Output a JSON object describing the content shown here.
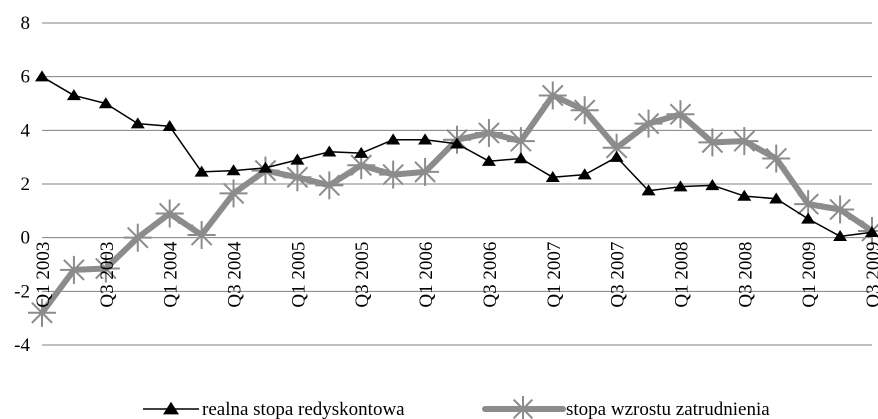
{
  "chart_data": {
    "type": "line",
    "title": "",
    "xlabel": "",
    "ylabel": "",
    "ylim": [
      -4,
      8
    ],
    "yticks": [
      -4,
      -2,
      0,
      2,
      4,
      6,
      8
    ],
    "grid": true,
    "legend_position": "bottom",
    "x": [
      "Q1 2003",
      "Q2 2003",
      "Q3 2003",
      "Q4 2003",
      "Q1 2004",
      "Q2 2004",
      "Q3 2004",
      "Q4 2004",
      "Q1 2005",
      "Q2 2005",
      "Q3 2005",
      "Q4 2005",
      "Q1 2006",
      "Q2 2006",
      "Q3 2006",
      "Q4 2006",
      "Q1 2007",
      "Q2 2007",
      "Q3 2007",
      "Q4 2007",
      "Q1 2008",
      "Q2 2008",
      "Q3 2008",
      "Q4 2008",
      "Q1 2009",
      "Q2 2009",
      "Q3 2009"
    ],
    "x_tick_labels": [
      "Q1 2003",
      "Q3 2003",
      "Q1 2004",
      "Q3 2004",
      "Q1 2005",
      "Q3 2005",
      "Q1 2006",
      "Q3 2006",
      "Q1 2007",
      "Q3 2007",
      "Q1 2008",
      "Q3 2008",
      "Q1 2009",
      "Q3 2009"
    ],
    "series": [
      {
        "name": "realna stopa redyskontowa",
        "color": "#000000",
        "marker": "triangle",
        "values": [
          6.0,
          5.3,
          5.0,
          4.25,
          4.15,
          2.45,
          2.5,
          2.6,
          2.9,
          3.2,
          3.15,
          3.65,
          3.65,
          3.5,
          2.85,
          2.95,
          2.25,
          2.35,
          3.0,
          1.75,
          1.9,
          1.95,
          1.55,
          1.45,
          0.7,
          0.05,
          0.2
        ]
      },
      {
        "name": "stopa wzrostu zatrudnienia",
        "color": "#8c8c8c",
        "marker": "star",
        "values": [
          -2.8,
          -1.2,
          -1.15,
          0.0,
          0.9,
          0.1,
          1.65,
          2.5,
          2.25,
          1.95,
          2.7,
          2.35,
          2.45,
          3.65,
          3.9,
          3.6,
          5.3,
          4.75,
          3.35,
          4.25,
          4.6,
          3.55,
          3.6,
          2.95,
          1.25,
          1.05,
          0.25
        ]
      }
    ]
  }
}
